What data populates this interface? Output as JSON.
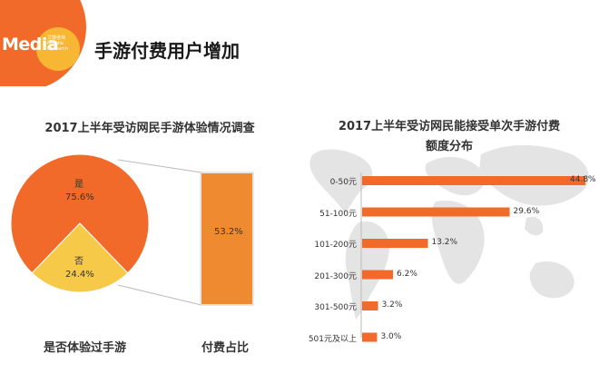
{
  "header": {
    "logo_text": "Media",
    "logo_subtext": "艾媒咨询 iiMedia Research",
    "title": "手游付费用户增加"
  },
  "colors": {
    "orange": "#f26a2a",
    "yellow": "#f7c948",
    "bar": "#f26a2a",
    "ratio": "#f08a30"
  },
  "chart_data": [
    {
      "type": "pie",
      "title": "2017上半年受访网民手游体验情况调查",
      "xlabel": "是否体验过手游",
      "labels": [
        "是",
        "否"
      ],
      "values": [
        75.6,
        24.4
      ],
      "value_labels": [
        "75.6%",
        "24.4%"
      ]
    },
    {
      "type": "bar",
      "title": "付费占比",
      "values": [
        53.2
      ],
      "value_labels": [
        "53.2%"
      ]
    },
    {
      "type": "bar",
      "orientation": "horizontal",
      "title": [
        "2017上半年受访网民能接受单次手游付费",
        "额度分布"
      ],
      "categories": [
        "0-50元",
        "51-100元",
        "101-200元",
        "201-300元",
        "301-500元",
        "501元及以上"
      ],
      "values": [
        44.8,
        29.6,
        13.2,
        6.2,
        3.2,
        3.0
      ],
      "value_labels": [
        "44.8%",
        "29.6%",
        "13.2%",
        "6.2%",
        "3.2%",
        "3.0%"
      ],
      "xlim": [
        0,
        44.8
      ]
    }
  ]
}
